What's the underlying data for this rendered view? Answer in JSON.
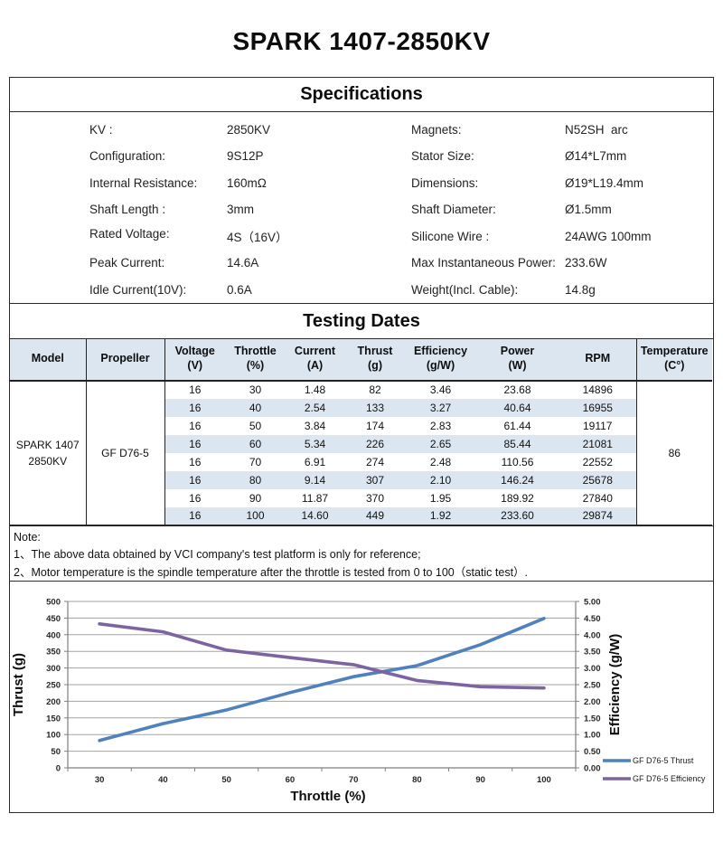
{
  "page_title": "SPARK 1407-2850KV",
  "specifications": {
    "header": "Specifications",
    "left": [
      {
        "label": "KV :",
        "value": "2850KV"
      },
      {
        "label": "Configuration:",
        "value": "9S12P"
      },
      {
        "label": "Internal Resistance:",
        "value": "160mΩ"
      },
      {
        "label": "Shaft Length :",
        "value": "3mm"
      },
      {
        "label": "Rated Voltage:",
        "value": "4S（16V）"
      },
      {
        "label": "Peak Current:",
        "value": "14.6A"
      },
      {
        "label": "Idle Current(10V):",
        "value": "0.6A"
      }
    ],
    "right": [
      {
        "label": "Magnets:",
        "value": "N52SH  arc"
      },
      {
        "label": "Stator Size:",
        "value": "Ø14*L7mm"
      },
      {
        "label": "Dimensions:",
        "value": "Ø19*L19.4mm"
      },
      {
        "label": "Shaft Diameter:",
        "value": "Ø1.5mm"
      },
      {
        "label": "Silicone Wire :",
        "value": "24AWG 100mm"
      },
      {
        "label": "Max Instantaneous Power:",
        "value": "233.6W"
      },
      {
        "label": "Weight(Incl. Cable):",
        "value": "14.8g"
      }
    ]
  },
  "testing": {
    "header": "Testing Dates",
    "columns": [
      {
        "title": "Model",
        "unit": ""
      },
      {
        "title": "Propeller",
        "unit": ""
      },
      {
        "title": "Voltage",
        "unit": "(V)"
      },
      {
        "title": "Throttle",
        "unit": "(%)"
      },
      {
        "title": "Current",
        "unit": "(A)"
      },
      {
        "title": "Thrust",
        "unit": "(g)"
      },
      {
        "title": "Efficiency",
        "unit": "(g/W)"
      },
      {
        "title": "Power",
        "unit": "(W)"
      },
      {
        "title": "RPM",
        "unit": ""
      },
      {
        "title": "Temperature",
        "unit": "(C°)"
      }
    ],
    "model_line1": "SPARK 1407",
    "model_line2": "2850KV",
    "propeller": "GF D76-5",
    "temperature": "86",
    "rows": [
      [
        "16",
        "30",
        "1.48",
        "82",
        "3.46",
        "23.68",
        "14896"
      ],
      [
        "16",
        "40",
        "2.54",
        "133",
        "3.27",
        "40.64",
        "16955"
      ],
      [
        "16",
        "50",
        "3.84",
        "174",
        "2.83",
        "61.44",
        "19117"
      ],
      [
        "16",
        "60",
        "5.34",
        "226",
        "2.65",
        "85.44",
        "21081"
      ],
      [
        "16",
        "70",
        "6.91",
        "274",
        "2.48",
        "110.56",
        "22552"
      ],
      [
        "16",
        "80",
        "9.14",
        "307",
        "2.10",
        "146.24",
        "25678"
      ],
      [
        "16",
        "90",
        "11.87",
        "370",
        "1.95",
        "189.92",
        "27840"
      ],
      [
        "16",
        "100",
        "14.60",
        "449",
        "1.92",
        "233.60",
        "29874"
      ]
    ]
  },
  "note": {
    "title": "Note:",
    "line1": "1、The above data obtained by VCI company's test platform is only for reference;",
    "line2": "2、Motor temperature is the spindle temperature after the throttle is tested from 0 to 100（static test）."
  },
  "chart_data": {
    "type": "line",
    "x": [
      30,
      40,
      50,
      60,
      70,
      80,
      90,
      100
    ],
    "series": [
      {
        "name": "GF D76-5 Thrust",
        "axis": "left",
        "color": "#4e81bd",
        "values": [
          82,
          133,
          174,
          226,
          274,
          307,
          370,
          449
        ]
      },
      {
        "name": "GF D76-5 Efficiency",
        "axis": "right",
        "color": "#7c64a0",
        "values": [
          3.46,
          3.27,
          2.83,
          2.65,
          2.48,
          2.1,
          1.95,
          1.92
        ]
      }
    ],
    "xlabel": "Throttle  (%)",
    "ylabel_left": "Thrust  (g)",
    "ylabel_right": "Efficiency (g/W)",
    "ylim_left": [
      0,
      500
    ],
    "ystep_left": 50,
    "ylim_right": [
      0,
      4.0
    ],
    "ystep_right": 0.5,
    "grid": "horizontal",
    "legend_position": "bottom-right",
    "colors": {
      "grid": "#a3a3a3",
      "axis": "#7f7f7f",
      "stripe": "#dce6f1"
    }
  }
}
